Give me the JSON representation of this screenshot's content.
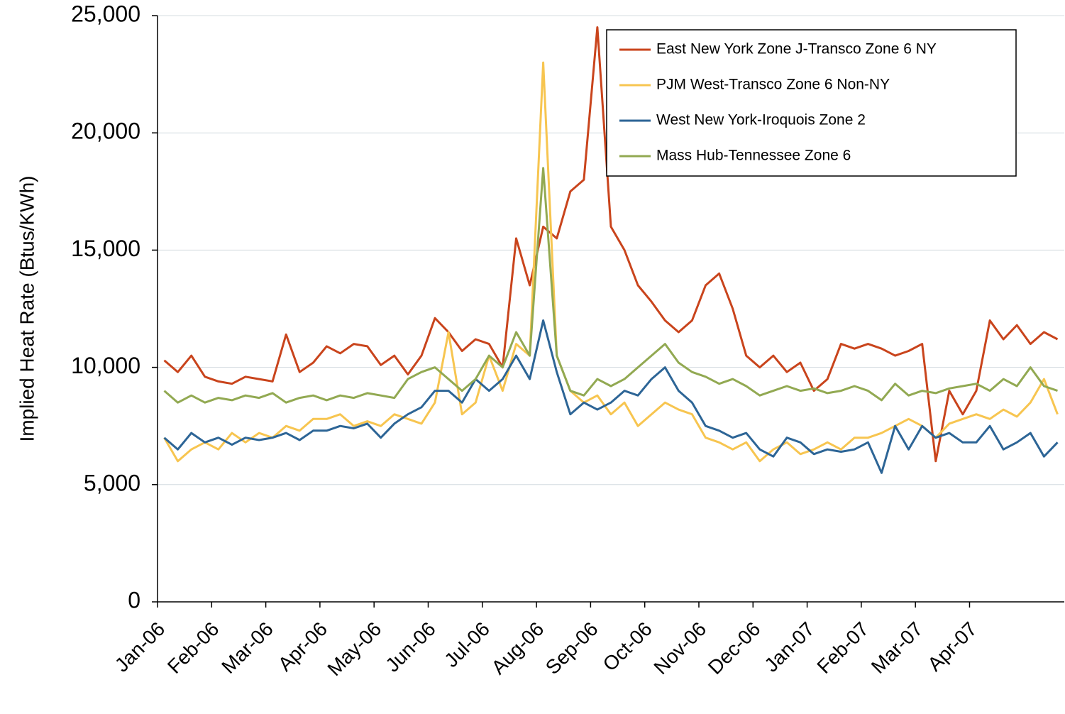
{
  "chart_data": {
    "type": "line",
    "y_label": "Implied Heat Rate (Btus/KWh)",
    "categories": [
      "Jan-06",
      null,
      null,
      null,
      "Feb-06",
      null,
      null,
      null,
      "Mar-06",
      null,
      null,
      null,
      "Apr-06",
      null,
      null,
      null,
      "May-06",
      null,
      null,
      null,
      "Jun-06",
      null,
      null,
      null,
      "Jul-06",
      null,
      null,
      null,
      "Aug-06",
      null,
      null,
      null,
      "Sep-06",
      null,
      null,
      null,
      "Oct-06",
      null,
      null,
      null,
      "Nov-06",
      null,
      null,
      null,
      "Dec-06",
      null,
      null,
      null,
      "Jan-07",
      null,
      null,
      null,
      "Feb-07",
      null,
      null,
      null,
      "Mar-07",
      null,
      null,
      null,
      "Apr-07",
      null,
      null,
      null,
      null,
      null,
      null
    ],
    "series": [
      {
        "name": "East New York Zone J-Transco Zone 6 NY",
        "color": "#c9441c",
        "values": [
          10300,
          9800,
          10500,
          9600,
          9400,
          9300,
          9600,
          9500,
          9400,
          11400,
          9800,
          10200,
          10900,
          10600,
          11000,
          10900,
          10100,
          10500,
          9700,
          10500,
          12100,
          11500,
          10700,
          11200,
          11000,
          10000,
          15500,
          13500,
          16000,
          15500,
          17500,
          18000,
          24500,
          16000,
          15000,
          13500,
          12800,
          12000,
          11500,
          12000,
          13500,
          14000,
          12500,
          10500,
          10000,
          10500,
          9800,
          10200,
          9000,
          9500,
          11000,
          10800,
          11000,
          10800,
          10500,
          10700,
          11000,
          6000,
          9000,
          8000,
          9000,
          12000,
          11200,
          11800,
          11000,
          11500,
          11200
        ]
      },
      {
        "name": "PJM West-Transco Zone 6 Non-NY",
        "color": "#f7c550",
        "values": [
          7000,
          6000,
          6500,
          6800,
          6500,
          7200,
          6800,
          7200,
          7000,
          7500,
          7300,
          7800,
          7800,
          8000,
          7500,
          7700,
          7500,
          8000,
          7800,
          7600,
          8500,
          11500,
          8000,
          8500,
          10500,
          9000,
          11000,
          10500,
          23000,
          10500,
          9000,
          8500,
          8800,
          8000,
          8500,
          7500,
          8000,
          8500,
          8200,
          8000,
          7000,
          6800,
          6500,
          6800,
          6000,
          6500,
          6800,
          6300,
          6500,
          6800,
          6500,
          7000,
          7000,
          7200,
          7500,
          7800,
          7500,
          7000,
          7600,
          7800,
          8000,
          7800,
          8200,
          7900,
          8500,
          9500,
          8000
        ]
      },
      {
        "name": "West New York-Iroquois Zone 2",
        "color": "#2d6596",
        "values": [
          7000,
          6500,
          7200,
          6800,
          7000,
          6700,
          7000,
          6900,
          7000,
          7200,
          6900,
          7300,
          7300,
          7500,
          7400,
          7600,
          7000,
          7600,
          8000,
          8300,
          9000,
          9000,
          8500,
          9500,
          9000,
          9500,
          10500,
          9500,
          12000,
          9800,
          8000,
          8500,
          8200,
          8500,
          9000,
          8800,
          9500,
          10000,
          9000,
          8500,
          7500,
          7300,
          7000,
          7200,
          6500,
          6200,
          7000,
          6800,
          6300,
          6500,
          6400,
          6500,
          6800,
          5500,
          7500,
          6500,
          7500,
          7000,
          7200,
          6800,
          6800,
          7500,
          6500,
          6800,
          7200,
          6200,
          6800
        ]
      },
      {
        "name": "Mass Hub-Tennessee Zone 6",
        "color": "#92a952",
        "values": [
          9000,
          8500,
          8800,
          8500,
          8700,
          8600,
          8800,
          8700,
          8900,
          8500,
          8700,
          8800,
          8600,
          8800,
          8700,
          8900,
          8800,
          8700,
          9500,
          9800,
          10000,
          9500,
          9000,
          9500,
          10500,
          10000,
          11500,
          10500,
          18500,
          10500,
          9000,
          8800,
          9500,
          9200,
          9500,
          10000,
          10500,
          11000,
          10200,
          9800,
          9600,
          9300,
          9500,
          9200,
          8800,
          9000,
          9200,
          9000,
          9100,
          8900,
          9000,
          9200,
          9000,
          8600,
          9300,
          8800,
          9000,
          8900,
          9100,
          9200,
          9300,
          9000,
          9500,
          9200,
          10000,
          9200,
          9000
        ]
      }
    ],
    "ylim": [
      0,
      25000
    ],
    "yticks": [
      0,
      {
        "value": 5000,
        "label": "5,000"
      },
      {
        "value": 10000,
        "label": "10,000"
      },
      {
        "value": 15000,
        "label": "15,000"
      },
      {
        "value": 20000,
        "label": "20,000"
      },
      {
        "value": 25000,
        "label": "25,000"
      }
    ],
    "grid": true,
    "legend": "top-right"
  }
}
